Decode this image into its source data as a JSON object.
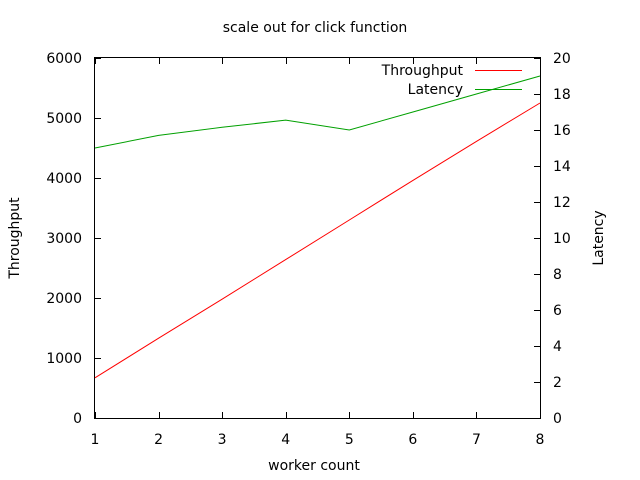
{
  "chart_data": {
    "type": "line",
    "title": "scale out for click function",
    "xlabel": "worker count",
    "ylabel": "Throughput",
    "y2label": "Latency",
    "x": [
      1,
      2,
      3,
      4,
      5,
      6,
      7,
      8
    ],
    "xlim": [
      1,
      8
    ],
    "ylim": [
      0,
      6000
    ],
    "y2lim": [
      0,
      20
    ],
    "xticks": [
      1,
      2,
      3,
      4,
      5,
      6,
      7,
      8
    ],
    "yticks": [
      0,
      1000,
      2000,
      3000,
      4000,
      5000,
      6000
    ],
    "y2ticks": [
      0,
      2,
      4,
      6,
      8,
      10,
      12,
      14,
      16,
      18,
      20
    ],
    "grid": false,
    "legend_position": "top-right",
    "series": [
      {
        "name": "Throughput",
        "axis": "left",
        "color": "#ff0000",
        "values": [
          670,
          1330,
          1980,
          2640,
          3300,
          3960,
          4610,
          5250
        ]
      },
      {
        "name": "Latency",
        "axis": "right",
        "color": "#00a000",
        "values": [
          15.0,
          15.7,
          16.15,
          16.55,
          16.0,
          17.0,
          18.0,
          19.0
        ]
      }
    ]
  }
}
